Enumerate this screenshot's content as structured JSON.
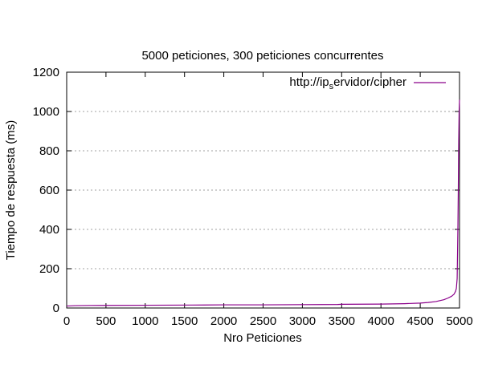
{
  "chart_data": {
    "type": "line",
    "title": "5000 peticiones, 300 peticiones concurrentes",
    "xlabel": "Nro Peticiones",
    "ylabel": "Tiempo de respuesta (ms)",
    "xlim": [
      0,
      5000
    ],
    "ylim": [
      0,
      1200
    ],
    "x_ticks": [
      0,
      500,
      1000,
      1500,
      2000,
      2500,
      3000,
      3500,
      4000,
      4500,
      5000
    ],
    "y_ticks": [
      0,
      200,
      400,
      600,
      800,
      1000,
      1200
    ],
    "x_tick_labels": [
      "0",
      "500",
      "1000",
      "1500",
      "2000",
      "2500",
      "3000",
      "3500",
      "4000",
      "4500",
      "5000"
    ],
    "y_tick_labels": [
      "0",
      "200",
      "400",
      "600",
      "800",
      "1000",
      "1200"
    ],
    "grid": "horizontal dotted",
    "legend_position": "top-right",
    "legend": {
      "label_prefix": "http://ip",
      "label_subscript": "s",
      "label_suffix": "ervidor/cipher"
    },
    "series": [
      {
        "name": "http://ip_servidor/cipher",
        "color": "#8b008b",
        "x": [
          0,
          100,
          300,
          1000,
          1600,
          2000,
          2500,
          3000,
          3450,
          3500,
          4000,
          4300,
          4500,
          4600,
          4700,
          4800,
          4850,
          4900,
          4930,
          4950,
          4960,
          4970,
          4975,
          4980,
          4985,
          4990,
          4995,
          5000
        ],
        "y": [
          10,
          12,
          13,
          14,
          15,
          16,
          16,
          17,
          18,
          19,
          20,
          22,
          25,
          28,
          33,
          42,
          50,
          60,
          70,
          85,
          100,
          150,
          280,
          420,
          620,
          850,
          1000,
          1060
        ]
      }
    ]
  }
}
